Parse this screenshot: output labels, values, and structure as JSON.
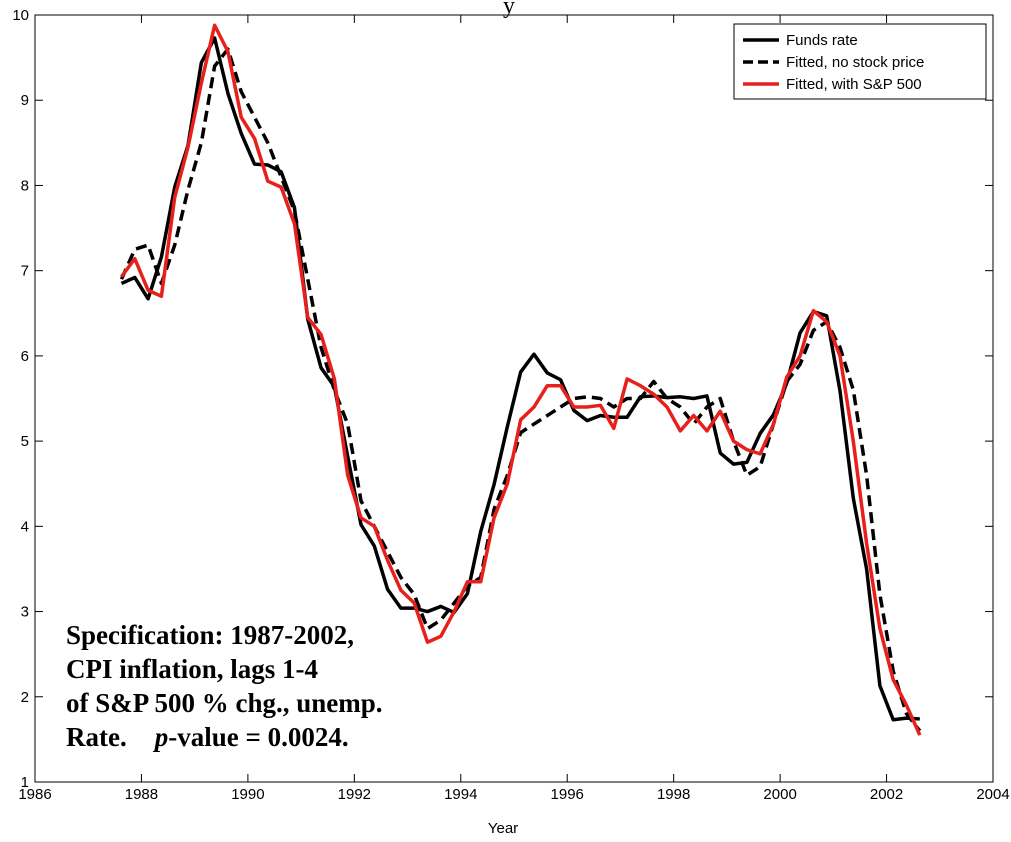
{
  "chart_data": {
    "type": "line",
    "title": "y",
    "xlabel": "Year",
    "ylabel": "",
    "xlim": [
      1986,
      2004
    ],
    "ylim": [
      1,
      10
    ],
    "x_ticks": [
      "1986",
      "1988",
      "1990",
      "1992",
      "1994",
      "1996",
      "1998",
      "2000",
      "2002",
      "2004"
    ],
    "y_ticks": [
      "1",
      "2",
      "3",
      "4",
      "5",
      "6",
      "7",
      "8",
      "9",
      "10"
    ],
    "legend_position": "top-right",
    "grid": false,
    "x": [
      1987.625,
      1987.875,
      1988.125,
      1988.375,
      1988.625,
      1988.875,
      1989.125,
      1989.375,
      1989.625,
      1989.875,
      1990.125,
      1990.375,
      1990.625,
      1990.875,
      1991.125,
      1991.375,
      1991.625,
      1991.875,
      1992.125,
      1992.375,
      1992.625,
      1992.875,
      1993.125,
      1993.375,
      1993.625,
      1993.875,
      1994.125,
      1994.375,
      1994.625,
      1994.875,
      1995.125,
      1995.375,
      1995.625,
      1995.875,
      1996.125,
      1996.375,
      1996.625,
      1996.875,
      1997.125,
      1997.375,
      1997.625,
      1997.875,
      1998.125,
      1998.375,
      1998.625,
      1998.875,
      1999.125,
      1999.375,
      1999.625,
      1999.875,
      2000.125,
      2000.375,
      2000.625,
      2000.875,
      2001.125,
      2001.375,
      2001.625,
      2001.875,
      2002.125,
      2002.375,
      2002.625
    ],
    "series": [
      {
        "name": "Funds rate",
        "color": "#000000",
        "dash": "solid",
        "values": [
          6.85,
          6.92,
          6.67,
          7.16,
          7.98,
          8.47,
          9.44,
          9.73,
          9.08,
          8.61,
          8.25,
          8.24,
          8.16,
          7.74,
          6.43,
          5.86,
          5.64,
          4.82,
          4.02,
          3.77,
          3.26,
          3.04,
          3.04,
          3.0,
          3.06,
          2.99,
          3.21,
          3.94,
          4.49,
          5.17,
          5.81,
          6.02,
          5.8,
          5.72,
          5.36,
          5.24,
          5.3,
          5.28,
          5.28,
          5.52,
          5.53,
          5.51,
          5.52,
          5.5,
          5.53,
          4.86,
          4.73,
          4.75,
          5.09,
          5.31,
          5.68,
          6.27,
          6.52,
          6.47,
          5.59,
          4.33,
          3.5,
          2.13,
          1.73,
          1.75,
          1.74
        ]
      },
      {
        "name": "Fitted, no stock price",
        "color": "#000000",
        "dash": "dashed",
        "values": [
          6.9,
          7.25,
          7.3,
          6.85,
          7.3,
          7.95,
          8.5,
          9.4,
          9.6,
          9.1,
          8.8,
          8.5,
          8.1,
          7.7,
          6.9,
          6.1,
          5.6,
          5.2,
          4.3,
          4.0,
          3.7,
          3.4,
          3.2,
          2.8,
          2.9,
          3.1,
          3.3,
          3.4,
          4.2,
          4.6,
          5.1,
          5.2,
          5.3,
          5.4,
          5.5,
          5.52,
          5.5,
          5.4,
          5.5,
          5.5,
          5.7,
          5.5,
          5.4,
          5.2,
          5.4,
          5.5,
          5.0,
          4.6,
          4.7,
          5.2,
          5.7,
          5.9,
          6.3,
          6.4,
          6.1,
          5.6,
          4.6,
          3.2,
          2.3,
          1.8,
          1.6
        ]
      },
      {
        "name": "Fitted, with S&P 500",
        "color": "#e8201c",
        "dash": "solid",
        "values": [
          6.93,
          7.14,
          6.77,
          6.7,
          7.86,
          8.45,
          9.2,
          9.88,
          9.57,
          8.8,
          8.55,
          8.05,
          7.98,
          7.55,
          6.45,
          6.25,
          5.73,
          4.6,
          4.1,
          4.0,
          3.6,
          3.25,
          3.1,
          2.64,
          2.71,
          3.0,
          3.35,
          3.35,
          4.1,
          4.5,
          5.25,
          5.4,
          5.65,
          5.65,
          5.4,
          5.4,
          5.42,
          5.15,
          5.73,
          5.65,
          5.55,
          5.4,
          5.12,
          5.3,
          5.12,
          5.35,
          5.0,
          4.9,
          4.85,
          5.2,
          5.75,
          6.0,
          6.53,
          6.4,
          6.0,
          5.0,
          3.8,
          2.8,
          2.2,
          1.9,
          1.55
        ]
      }
    ],
    "annotation": {
      "lines": [
        "Specification: 1987-2002,",
        "CPI inflation, lags 1-4",
        "of S&P 500 % chg., unemp."
      ],
      "last_line_prefix": "Rate.",
      "last_line_italic": "p",
      "last_line_suffix": "-value = 0.0024."
    }
  }
}
